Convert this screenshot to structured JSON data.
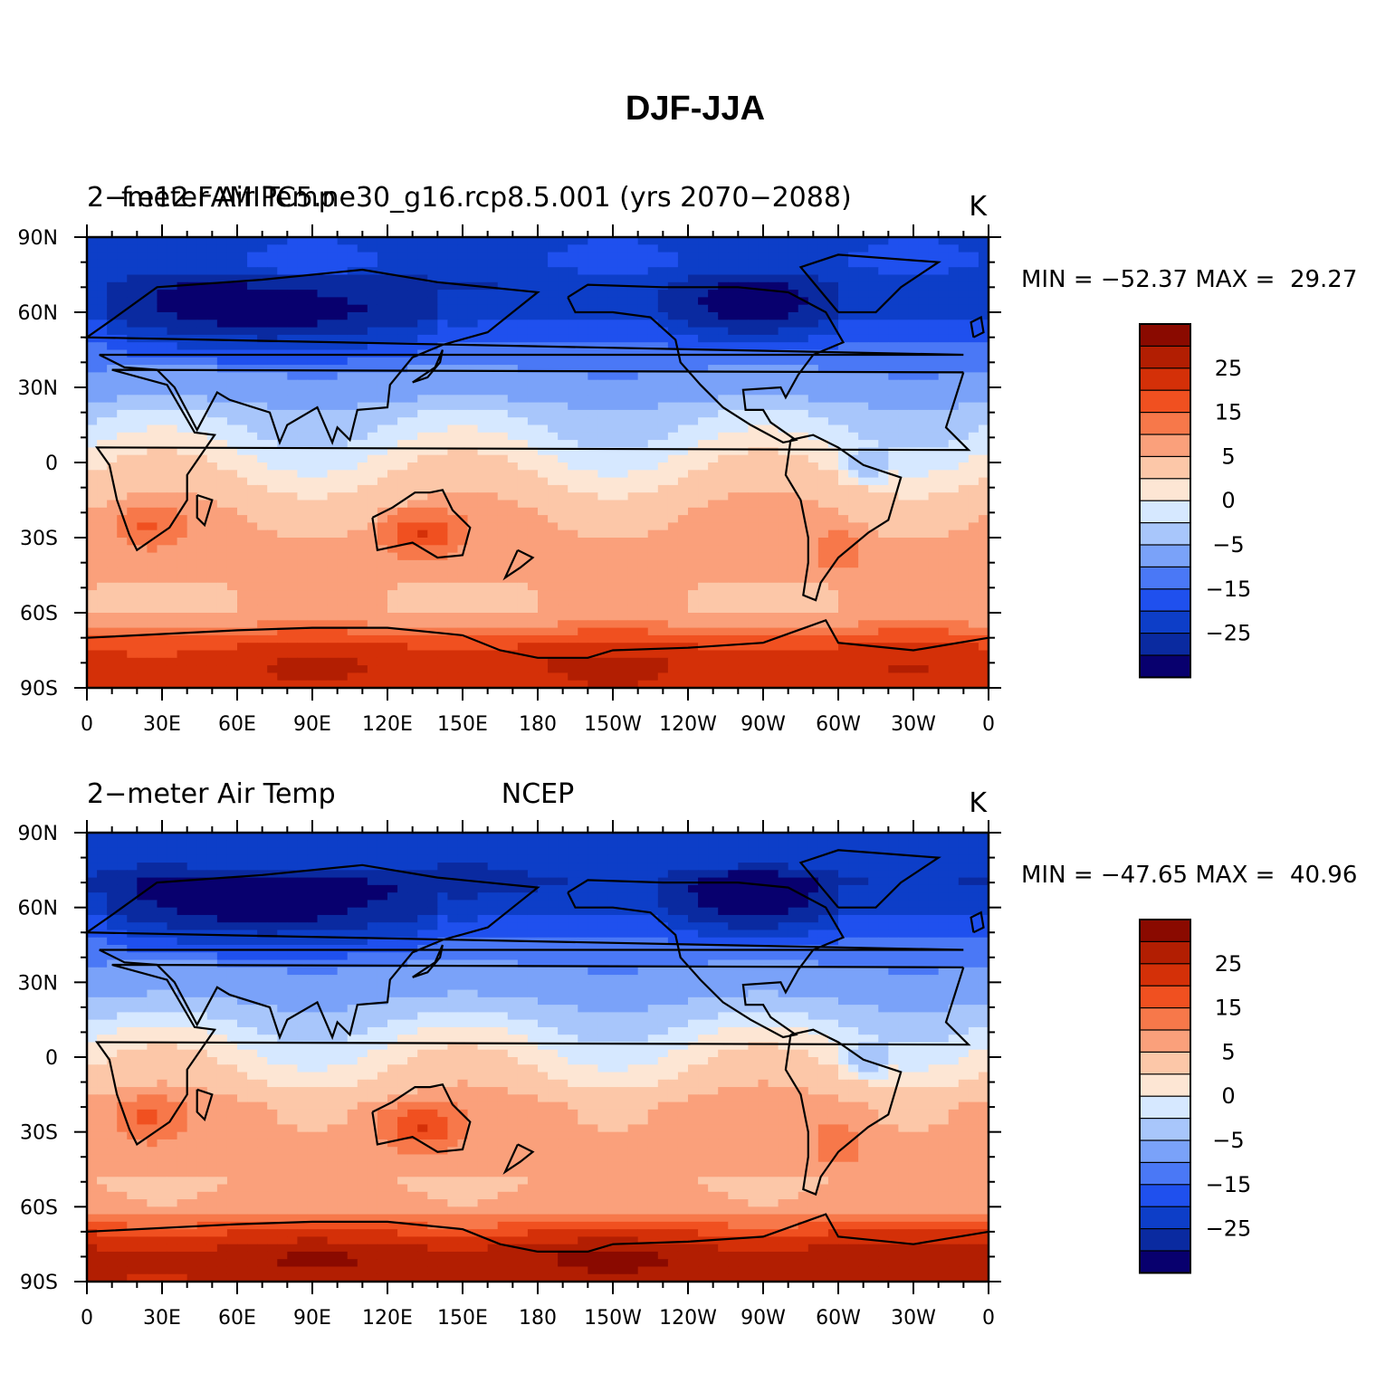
{
  "figure_title": "DJF-JJA",
  "colors": {
    "levels": [
      "#08006e",
      "#0a2aa0",
      "#0d3ec8",
      "#1f50ee",
      "#4a78f6",
      "#7aa2f9",
      "#a8c6fb",
      "#d6e8ff",
      "#fde6d4",
      "#fcc7a8",
      "#faa07b",
      "#f7784a",
      "#f05020",
      "#d43008",
      "#b21e02",
      "#8a0a00"
    ],
    "coastline": "#000000"
  },
  "colorbar_labels": [
    "25",
    "15",
    "5",
    "0",
    "−5",
    "−15",
    "−25"
  ],
  "chart_data": [
    {
      "type": "heatmap",
      "left_title": "2−meter Air Temp",
      "center_title": "f.e12.FAMIPC5.ne30_g16.rcp8.5.001 (yrs 2070−2088)",
      "right_title": "K",
      "stats": "MIN = −52.37 MAX =  29.27",
      "min": -52.37,
      "max": 29.27,
      "x_ticks": [
        "0",
        "30E",
        "60E",
        "90E",
        "120E",
        "150E",
        "180",
        "150W",
        "120W",
        "90W",
        "60W",
        "30W",
        "0"
      ],
      "y_ticks": [
        "90N",
        "60N",
        "30N",
        "0",
        "30S",
        "60S",
        "90S"
      ],
      "xlim": [
        0,
        360
      ],
      "ylim": [
        -90,
        90
      ],
      "zonal_profile": [
        [
          90,
          -22
        ],
        [
          80,
          -20
        ],
        [
          70,
          -24
        ],
        [
          60,
          -22
        ],
        [
          50,
          -16
        ],
        [
          40,
          -11
        ],
        [
          30,
          -8
        ],
        [
          20,
          -3
        ],
        [
          10,
          -1
        ],
        [
          0,
          1
        ],
        [
          -10,
          3
        ],
        [
          -20,
          5
        ],
        [
          -30,
          6
        ],
        [
          -40,
          6
        ],
        [
          -50,
          5
        ],
        [
          -60,
          5
        ],
        [
          -65,
          10
        ],
        [
          -70,
          18
        ],
        [
          -80,
          22
        ],
        [
          -90,
          22
        ]
      ]
    },
    {
      "type": "heatmap",
      "left_title": "2−meter Air Temp",
      "center_title": "NCEP",
      "right_title": "K",
      "stats": "MIN = −47.65 MAX =  40.96",
      "min": -47.65,
      "max": 40.96,
      "x_ticks": [
        "0",
        "30E",
        "60E",
        "90E",
        "120E",
        "150E",
        "180",
        "150W",
        "120W",
        "90W",
        "60W",
        "30W",
        "0"
      ],
      "y_ticks": [
        "90N",
        "60N",
        "30N",
        "0",
        "30S",
        "60S",
        "90S"
      ],
      "xlim": [
        0,
        360
      ],
      "ylim": [
        -90,
        90
      ],
      "zonal_profile": [
        [
          90,
          -22
        ],
        [
          80,
          -22
        ],
        [
          70,
          -26
        ],
        [
          60,
          -22
        ],
        [
          50,
          -16
        ],
        [
          40,
          -11
        ],
        [
          30,
          -8
        ],
        [
          20,
          -4
        ],
        [
          10,
          -1
        ],
        [
          0,
          1
        ],
        [
          -10,
          3
        ],
        [
          -20,
          6
        ],
        [
          -30,
          6
        ],
        [
          -40,
          6
        ],
        [
          -50,
          5
        ],
        [
          -60,
          6
        ],
        [
          -65,
          12
        ],
        [
          -70,
          20
        ],
        [
          -80,
          27
        ],
        [
          -90,
          26
        ]
      ]
    }
  ]
}
